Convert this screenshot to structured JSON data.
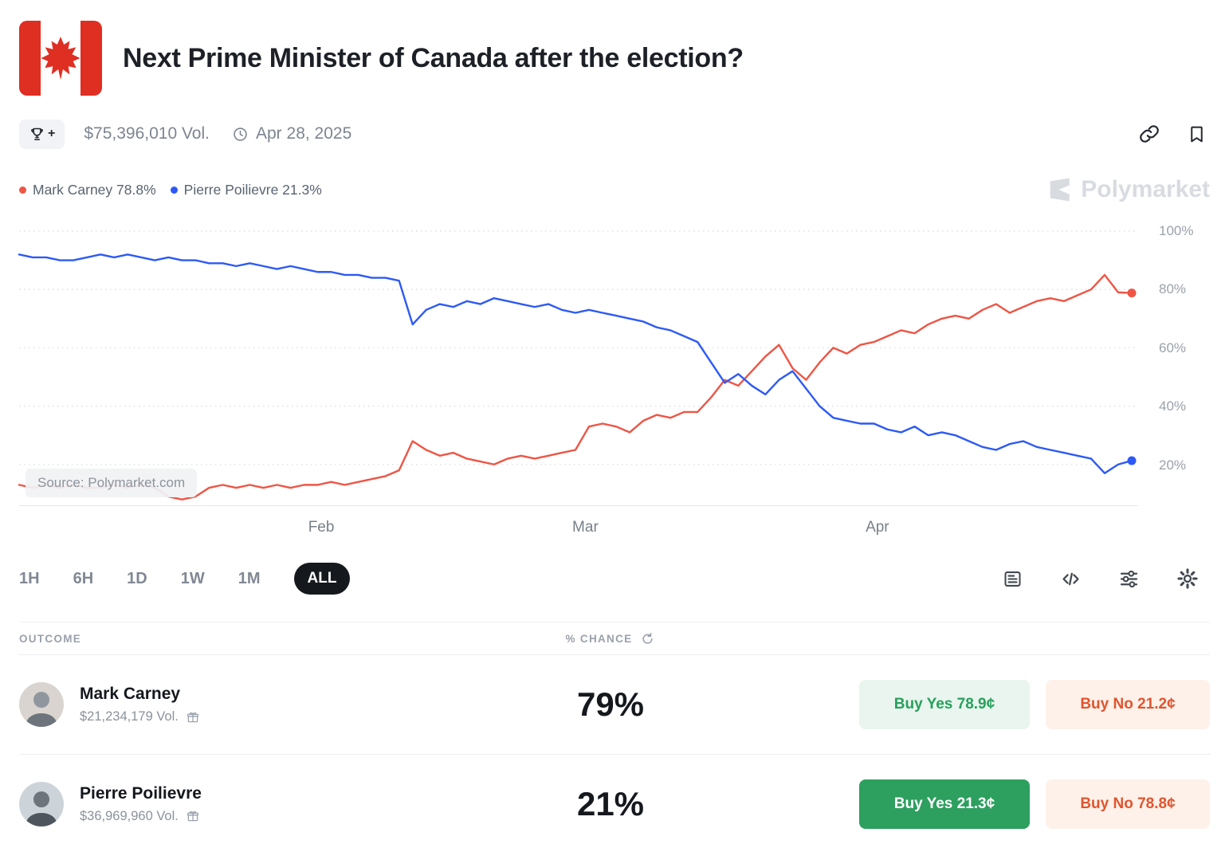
{
  "header": {
    "title": "Next Prime Minister of Canada after the election?",
    "volume": "$75,396,010 Vol.",
    "date": "Apr 28, 2025",
    "trophy_plus": "+"
  },
  "legend": [
    {
      "label": "Mark Carney 78.8%",
      "color": "#ee5545"
    },
    {
      "label": "Pierre Poilievre 21.3%",
      "color": "#2d5af5"
    }
  ],
  "watermark": "Polymarket",
  "chart_data": {
    "type": "line",
    "title": "",
    "x_range": [
      "Jan 2025",
      "Apr 28, 2025"
    ],
    "x_ticks": [
      {
        "label": "Feb",
        "f": 0.27
      },
      {
        "label": "Mar",
        "f": 0.506
      },
      {
        "label": "Apr",
        "f": 0.767
      }
    ],
    "y_ticks": [
      {
        "label": "100%",
        "v": 100
      },
      {
        "label": "80%",
        "v": 80
      },
      {
        "label": "60%",
        "v": 60
      },
      {
        "label": "40%",
        "v": 40
      },
      {
        "label": "20%",
        "v": 20
      }
    ],
    "y_axis_visible_min": 6,
    "grid": "dotted-horizontal",
    "legend_position": "top-left",
    "source_badge": "Source: Polymarket.com",
    "series": [
      {
        "name": "Mark Carney",
        "color": "#ee5545",
        "final": 78.8,
        "values": [
          13,
          12,
          13,
          12,
          13,
          12,
          12,
          13,
          12,
          13,
          12,
          9,
          8,
          9,
          12,
          13,
          12,
          13,
          12,
          13,
          12,
          13,
          13,
          14,
          13,
          14,
          15,
          16,
          18,
          28,
          25,
          23,
          24,
          22,
          21,
          20,
          22,
          23,
          22,
          23,
          24,
          25,
          33,
          34,
          33,
          31,
          35,
          37,
          36,
          38,
          38,
          43,
          49,
          47,
          52,
          57,
          61,
          53,
          49,
          55,
          60,
          58,
          61,
          62,
          64,
          66,
          65,
          68,
          70,
          71,
          70,
          73,
          75,
          72,
          74,
          76,
          77,
          76,
          78,
          80,
          85,
          79,
          78.8
        ]
      },
      {
        "name": "Pierre Poilievre",
        "color": "#2d5af5",
        "final": 21.3,
        "values": [
          92,
          91,
          91,
          90,
          90,
          91,
          92,
          91,
          92,
          91,
          90,
          91,
          90,
          90,
          89,
          89,
          88,
          89,
          88,
          87,
          88,
          87,
          86,
          86,
          85,
          85,
          84,
          84,
          83,
          68,
          73,
          75,
          74,
          76,
          75,
          77,
          76,
          75,
          74,
          75,
          73,
          72,
          73,
          72,
          71,
          70,
          69,
          67,
          66,
          64,
          62,
          55,
          48,
          51,
          47,
          44,
          49,
          52,
          46,
          40,
          36,
          35,
          34,
          34,
          32,
          31,
          33,
          30,
          31,
          30,
          28,
          26,
          25,
          27,
          28,
          26,
          25,
          24,
          23,
          22,
          17,
          20,
          21.3
        ]
      }
    ]
  },
  "time_ranges": [
    {
      "label": "1H",
      "active": false
    },
    {
      "label": "6H",
      "active": false
    },
    {
      "label": "1D",
      "active": false
    },
    {
      "label": "1W",
      "active": false
    },
    {
      "label": "1M",
      "active": false
    },
    {
      "label": "ALL",
      "active": true
    }
  ],
  "table": {
    "outcome_header": "OUTCOME",
    "chance_header": "% CHANCE",
    "rows": [
      {
        "name": "Mark Carney",
        "volume": "$21,234,179 Vol.",
        "chance": "79%",
        "buy_yes": "Buy Yes 78.9¢",
        "buy_no": "Buy No 21.2¢",
        "yes_highlighted": false
      },
      {
        "name": "Pierre Poilievre",
        "volume": "$36,969,960 Vol.",
        "chance": "21%",
        "buy_yes": "Buy Yes 21.3¢",
        "buy_no": "Buy No 78.8¢",
        "yes_highlighted": true
      }
    ]
  },
  "colors": {
    "flag_red": "#df2e22",
    "carney_line": "#ee5545",
    "poilievre_line": "#2d5af5",
    "buy_yes_green": "#2d9f5f",
    "buy_no_red": "#e0552e"
  },
  "icons": [
    "canada-flag",
    "trophy-plus",
    "clock",
    "copy-link",
    "bookmark",
    "polymarket-logo",
    "news",
    "embed-code",
    "filter-sliders",
    "settings-gear",
    "refresh",
    "gift"
  ]
}
